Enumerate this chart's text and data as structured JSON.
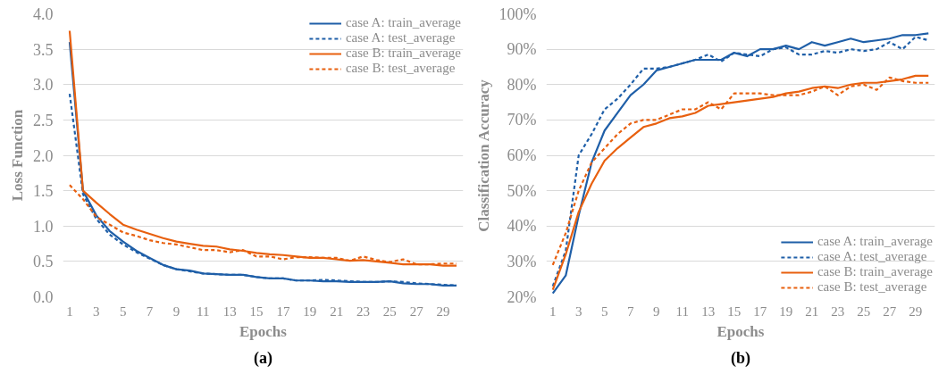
{
  "chart_data": [
    {
      "type": "line",
      "title": "(a)",
      "xlabel": "Epochs",
      "ylabel": "Loss Function",
      "x": [
        1,
        2,
        3,
        4,
        5,
        6,
        7,
        8,
        9,
        10,
        11,
        12,
        13,
        14,
        15,
        16,
        17,
        18,
        19,
        20,
        21,
        22,
        23,
        24,
        25,
        26,
        27,
        28,
        29,
        30
      ],
      "xlim": [
        0.5,
        30.5
      ],
      "xticks": [
        1,
        3,
        5,
        7,
        9,
        11,
        13,
        15,
        17,
        19,
        21,
        23,
        25,
        27,
        29
      ],
      "ylim": [
        0,
        4
      ],
      "yticks": [
        {
          "value": 0,
          "label": "0.0"
        },
        0.5,
        {
          "value": 1,
          "label": "1.0"
        },
        1.5,
        {
          "value": 2,
          "label": "2.0"
        },
        2.5,
        {
          "value": 3,
          "label": "3.0"
        },
        3.5,
        {
          "value": 4,
          "label": "4.0"
        }
      ],
      "grid": "y",
      "legend": "top right",
      "series": [
        {
          "name": "case A: train_average",
          "color": "#1f5fa8",
          "line_style": "solid",
          "values": [
            3.6,
            1.5,
            1.15,
            0.93,
            0.78,
            0.65,
            0.55,
            0.45,
            0.39,
            0.37,
            0.33,
            0.32,
            0.31,
            0.31,
            0.28,
            0.26,
            0.26,
            0.23,
            0.23,
            0.22,
            0.22,
            0.21,
            0.21,
            0.21,
            0.22,
            0.19,
            0.18,
            0.18,
            0.16,
            0.16
          ]
        },
        {
          "name": "case A: test_average",
          "color": "#1f5fa8",
          "line_style": "dashed",
          "values": [
            2.87,
            1.45,
            1.1,
            0.88,
            0.74,
            0.63,
            0.54,
            0.45,
            0.39,
            0.36,
            0.33,
            0.32,
            0.31,
            0.31,
            0.28,
            0.26,
            0.26,
            0.23,
            0.23,
            0.24,
            0.23,
            0.22,
            0.21,
            0.21,
            0.22,
            0.21,
            0.19,
            0.18,
            0.17,
            0.16
          ]
        },
        {
          "name": "case B: train_average",
          "color": "#e8600f",
          "line_style": "solid",
          "values": [
            3.76,
            1.5,
            1.33,
            1.17,
            1.02,
            0.95,
            0.89,
            0.83,
            0.78,
            0.75,
            0.72,
            0.71,
            0.67,
            0.65,
            0.62,
            0.6,
            0.59,
            0.57,
            0.55,
            0.55,
            0.53,
            0.51,
            0.52,
            0.5,
            0.48,
            0.46,
            0.46,
            0.46,
            0.44,
            0.44
          ]
        },
        {
          "name": "case B: test_average",
          "color": "#e8600f",
          "line_style": "dashed",
          "values": [
            1.58,
            1.38,
            1.13,
            1.02,
            0.91,
            0.86,
            0.8,
            0.76,
            0.74,
            0.7,
            0.66,
            0.66,
            0.63,
            0.66,
            0.57,
            0.57,
            0.53,
            0.56,
            0.56,
            0.55,
            0.55,
            0.51,
            0.57,
            0.52,
            0.49,
            0.53,
            0.46,
            0.46,
            0.47,
            0.47
          ]
        }
      ]
    },
    {
      "type": "line",
      "title": "(b)",
      "xlabel": "Epochs",
      "ylabel": "Classification Accuracy",
      "x": [
        1,
        2,
        3,
        4,
        5,
        6,
        7,
        8,
        9,
        10,
        11,
        12,
        13,
        14,
        15,
        16,
        17,
        18,
        19,
        20,
        21,
        22,
        23,
        24,
        25,
        26,
        27,
        28,
        29,
        30
      ],
      "xlim": [
        0.5,
        30.5
      ],
      "xticks": [
        1,
        3,
        5,
        7,
        9,
        11,
        13,
        15,
        17,
        19,
        21,
        23,
        25,
        27,
        29
      ],
      "ylim": [
        20,
        100
      ],
      "yticks": [
        {
          "value": 20,
          "label": "20%"
        },
        {
          "value": 30,
          "label": "30%"
        },
        {
          "value": 40,
          "label": "40%"
        },
        {
          "value": 50,
          "label": "50%"
        },
        {
          "value": 60,
          "label": "60%"
        },
        {
          "value": 70,
          "label": "70%"
        },
        {
          "value": 80,
          "label": "80%"
        },
        {
          "value": 90,
          "label": "90%"
        },
        {
          "value": 100,
          "label": "100%"
        }
      ],
      "grid": "y",
      "legend": "bottom right",
      "series": [
        {
          "name": "case A: train_average",
          "color": "#1f5fa8",
          "line_style": "solid",
          "values": [
            21,
            26,
            43,
            58,
            67,
            72,
            77,
            80,
            84,
            85,
            86,
            87,
            87,
            87,
            89,
            88,
            90,
            90,
            91,
            90,
            92,
            91,
            92,
            93,
            92,
            92.5,
            93,
            94,
            94,
            94.5
          ]
        },
        {
          "name": "case A: test_average",
          "color": "#1f5fa8",
          "line_style": "dashed",
          "values": [
            23,
            33,
            60,
            66,
            73,
            76,
            80,
            84.5,
            84.5,
            85,
            86,
            87,
            88.5,
            86.5,
            89,
            88.5,
            88,
            90,
            90.5,
            88.5,
            88.5,
            89.5,
            89,
            90,
            89.5,
            90,
            92,
            90,
            93.5,
            92.5
          ]
        },
        {
          "name": "case B: train_average",
          "color": "#e8600f",
          "line_style": "solid",
          "values": [
            22,
            32,
            44,
            52,
            58.5,
            62,
            65,
            68,
            69,
            70.5,
            71,
            72,
            74,
            74.5,
            75,
            75.5,
            76,
            76.5,
            77.5,
            78,
            79,
            79.5,
            79,
            80,
            80.5,
            80.5,
            81,
            81.5,
            82.5,
            82.5
          ]
        },
        {
          "name": "case B: test_average",
          "color": "#e8600f",
          "line_style": "dashed",
          "values": [
            29,
            38,
            50,
            58,
            62,
            66,
            69,
            70,
            70,
            71.5,
            73,
            73,
            75,
            73,
            77.5,
            77.5,
            77.5,
            77,
            77,
            77,
            78,
            79.5,
            77,
            79.5,
            80,
            78.5,
            82,
            81,
            80.5,
            80.5
          ]
        }
      ]
    }
  ]
}
